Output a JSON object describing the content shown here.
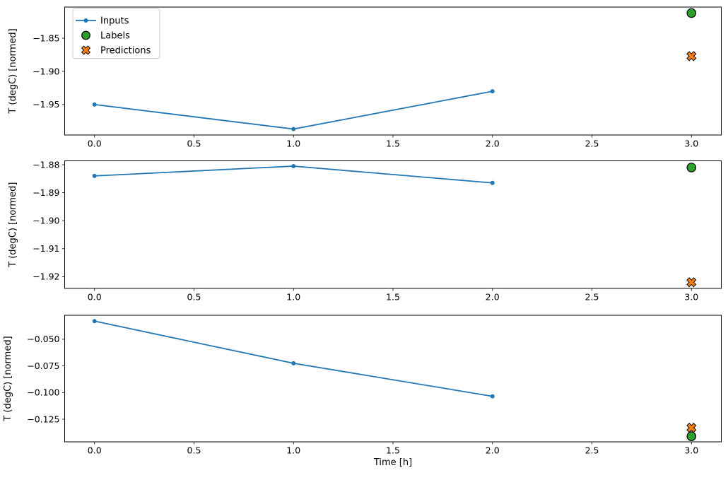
{
  "figure": {
    "xlabel": "Time [h]",
    "ylabel": "T (degC) [normed]",
    "background_color": "#ffffff",
    "axes_edge_color": "#000000"
  },
  "colors": {
    "inputs_blue": "#1f77b4",
    "labels_green": "#2ca02c",
    "predictions_orange": "#ff7f0e",
    "marker_edge": "#000000",
    "legend_border": "#cccccc"
  },
  "legend": {
    "location": "upper left",
    "entries": [
      {
        "label": "Inputs",
        "marker": "line-dot",
        "color": "#1f77b4"
      },
      {
        "label": "Labels",
        "marker": "circle",
        "color": "#2ca02c",
        "edge_color": "#000000"
      },
      {
        "label": "Predictions",
        "marker": "x",
        "color": "#ff7f0e",
        "edge_color": "#000000"
      }
    ]
  },
  "chart_data": [
    {
      "type": "line",
      "title": "",
      "xlabel": "",
      "ylabel": "T (degC) [normed]",
      "xlim": [
        -0.15,
        3.15
      ],
      "ylim": [
        -1.996,
        -1.803
      ],
      "xticks": [
        0.0,
        0.5,
        1.0,
        1.5,
        2.0,
        2.5,
        3.0
      ],
      "xtick_labels": [
        "0.0",
        "0.5",
        "1.0",
        "1.5",
        "2.0",
        "2.5",
        "3.0"
      ],
      "yticks": [
        -1.85,
        -1.9,
        -1.95
      ],
      "ytick_labels": [
        "−1.85",
        "−1.90",
        "−1.95"
      ],
      "grid": false,
      "series": [
        {
          "name": "Inputs",
          "type": "line",
          "marker": "dot",
          "color": "#1f77b4",
          "x": [
            0,
            1,
            2
          ],
          "y": [
            -1.95,
            -1.987,
            -1.93
          ]
        },
        {
          "name": "Labels",
          "type": "scatter",
          "marker": "circle",
          "color": "#2ca02c",
          "x": [
            3
          ],
          "y": [
            -1.812
          ]
        },
        {
          "name": "Predictions",
          "type": "scatter",
          "marker": "x",
          "color": "#ff7f0e",
          "x": [
            3
          ],
          "y": [
            -1.877
          ]
        }
      ]
    },
    {
      "type": "line",
      "title": "",
      "xlabel": "",
      "ylabel": "T (degC) [normed]",
      "xlim": [
        -0.15,
        3.15
      ],
      "ylim": [
        -1.9242,
        -1.8786
      ],
      "xticks": [
        0.0,
        0.5,
        1.0,
        1.5,
        2.0,
        2.5,
        3.0
      ],
      "xtick_labels": [
        "0.0",
        "0.5",
        "1.0",
        "1.5",
        "2.0",
        "2.5",
        "3.0"
      ],
      "yticks": [
        -1.88,
        -1.89,
        -1.9,
        -1.91,
        -1.92
      ],
      "ytick_labels": [
        "−1.88",
        "−1.89",
        "−1.90",
        "−1.91",
        "−1.92"
      ],
      "grid": false,
      "series": [
        {
          "name": "Inputs",
          "type": "line",
          "marker": "dot",
          "color": "#1f77b4",
          "x": [
            0,
            1,
            2
          ],
          "y": [
            -1.884,
            -1.8805,
            -1.8865
          ]
        },
        {
          "name": "Labels",
          "type": "scatter",
          "marker": "circle",
          "color": "#2ca02c",
          "x": [
            3
          ],
          "y": [
            -1.881
          ]
        },
        {
          "name": "Predictions",
          "type": "scatter",
          "marker": "x",
          "color": "#ff7f0e",
          "x": [
            3
          ],
          "y": [
            -1.922
          ]
        }
      ]
    },
    {
      "type": "line",
      "title": "",
      "xlabel": "Time [h]",
      "ylabel": "T (degC) [normed]",
      "xlim": [
        -0.15,
        3.15
      ],
      "ylim": [
        -0.1462,
        -0.0275
      ],
      "xticks": [
        0.0,
        0.5,
        1.0,
        1.5,
        2.0,
        2.5,
        3.0
      ],
      "xtick_labels": [
        "0.0",
        "0.5",
        "1.0",
        "1.5",
        "2.0",
        "2.5",
        "3.0"
      ],
      "yticks": [
        -0.05,
        -0.075,
        -0.1,
        -0.125
      ],
      "ytick_labels": [
        "−0.050",
        "−0.075",
        "−0.100",
        "−0.125"
      ],
      "grid": false,
      "series": [
        {
          "name": "Inputs",
          "type": "line",
          "marker": "dot",
          "color": "#1f77b4",
          "x": [
            0,
            1,
            2
          ],
          "y": [
            -0.033,
            -0.0725,
            -0.1035
          ]
        },
        {
          "name": "Labels",
          "type": "scatter",
          "marker": "circle",
          "color": "#2ca02c",
          "x": [
            3
          ],
          "y": [
            -0.141
          ]
        },
        {
          "name": "Predictions",
          "type": "scatter",
          "marker": "x",
          "color": "#ff7f0e",
          "x": [
            3
          ],
          "y": [
            -0.133
          ]
        }
      ]
    }
  ]
}
